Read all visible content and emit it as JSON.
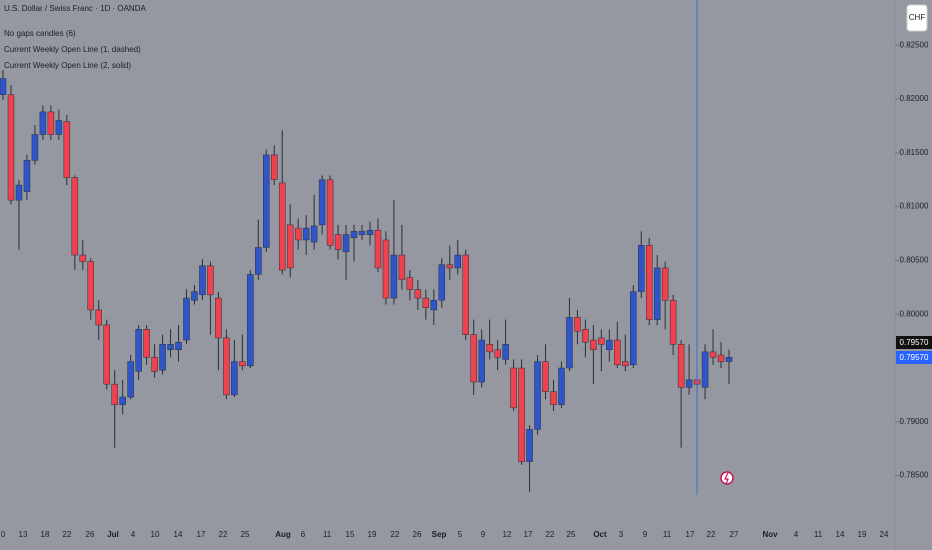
{
  "chart_data": {
    "type": "candlestick",
    "title": "U.S. Dollar / Swiss Franc · 1D · OANDA",
    "indicators": [
      "No gaps candles (6)",
      "Current Weekly Open Line (1, dashed)",
      "Current Weekly Open Line (2, solid)"
    ],
    "currency_button": "CHF",
    "up_color": "#2f55c8",
    "down_color": "#f0414f",
    "open": [
      0.8204,
      0.8204,
      0.8106,
      0.8114,
      0.8143,
      0.8167,
      0.8188,
      0.8167,
      0.8179,
      0.8127,
      0.8055,
      0.8049,
      0.8004,
      0.799,
      0.7935,
      0.7916,
      0.7923,
      0.7947,
      0.7986,
      0.796,
      0.7948,
      0.7967,
      0.7967,
      0.7976,
      0.8013,
      0.8018,
      0.8045,
      0.8015,
      0.7978,
      0.7925,
      0.7956,
      0.7952,
      0.8037,
      0.8062,
      0.8148,
      0.8122,
      0.8083,
      0.808,
      0.8069,
      0.8067,
      0.8083,
      0.8125,
      0.8074,
      0.8058,
      0.8071,
      0.8074,
      0.8074,
      0.8078,
      0.8069,
      0.8015,
      0.8055,
      0.8034,
      0.8023,
      0.8015,
      0.8004,
      0.8013,
      0.8046,
      0.8043,
      0.8055,
      0.7981,
      0.7937,
      0.7972,
      0.7967,
      0.7958,
      0.795,
      0.795,
      0.7863,
      0.7893,
      0.7956,
      0.7928,
      0.7916,
      0.795,
      0.7997,
      0.7986,
      0.7976,
      0.7978,
      0.7967,
      0.7976,
      0.7956,
      0.7953,
      0.8021,
      0.8064,
      0.7995,
      0.8043,
      0.8013,
      0.7972,
      0.7932,
      0.7939,
      0.7932,
      0.7965,
      0.7962,
      0.7956
    ],
    "high": [
      0.8227,
      0.8213,
      0.8125,
      0.8148,
      0.8176,
      0.8194,
      0.8194,
      0.819,
      0.8185,
      0.8129,
      0.8069,
      0.8052,
      0.8013,
      0.7995,
      0.7948,
      0.7939,
      0.7962,
      0.799,
      0.799,
      0.7972,
      0.7981,
      0.7986,
      0.799,
      0.8023,
      0.8027,
      0.8051,
      0.8049,
      0.8021,
      0.7986,
      0.7976,
      0.7981,
      0.8041,
      0.8088,
      0.8153,
      0.8157,
      0.8171,
      0.8102,
      0.8089,
      0.8092,
      0.8111,
      0.8129,
      0.8129,
      0.8083,
      0.8083,
      0.8083,
      0.8083,
      0.8086,
      0.8089,
      0.8077,
      0.8106,
      0.8083,
      0.8041,
      0.8032,
      0.8023,
      0.8023,
      0.8052,
      0.8064,
      0.8069,
      0.806,
      0.7995,
      0.7986,
      0.7995,
      0.7976,
      0.7995,
      0.7958,
      0.7958,
      0.7897,
      0.7962,
      0.7972,
      0.7939,
      0.7956,
      0.8015,
      0.8004,
      0.7995,
      0.799,
      0.7986,
      0.7986,
      0.7993,
      0.7981,
      0.8027,
      0.8077,
      0.8071,
      0.8055,
      0.8049,
      0.8018,
      0.7976,
      0.7972,
      0.7948,
      0.7972,
      0.7986,
      0.7974,
      0.7967
    ],
    "low": [
      0.8199,
      0.8102,
      0.806,
      0.8106,
      0.8139,
      0.8162,
      0.8162,
      0.8162,
      0.812,
      0.8041,
      0.8041,
      0.7995,
      0.7976,
      0.793,
      0.7876,
      0.7907,
      0.7921,
      0.7939,
      0.7953,
      0.7941,
      0.7944,
      0.796,
      0.7956,
      0.7972,
      0.8009,
      0.8013,
      0.7981,
      0.7948,
      0.7921,
      0.7923,
      0.7948,
      0.795,
      0.8032,
      0.8058,
      0.812,
      0.8037,
      0.8034,
      0.806,
      0.8055,
      0.806,
      0.8074,
      0.806,
      0.8051,
      0.8032,
      0.8049,
      0.8069,
      0.8064,
      0.8039,
      0.8009,
      0.8009,
      0.8023,
      0.8013,
      0.8004,
      0.7995,
      0.799,
      0.8006,
      0.8032,
      0.8037,
      0.7976,
      0.7925,
      0.7932,
      0.7958,
      0.7948,
      0.7953,
      0.791,
      0.786,
      0.7835,
      0.7888,
      0.7921,
      0.791,
      0.7913,
      0.7947,
      0.7972,
      0.796,
      0.7935,
      0.7947,
      0.7956,
      0.795,
      0.7947,
      0.795,
      0.8015,
      0.799,
      0.799,
      0.7986,
      0.7962,
      0.7876,
      0.7925,
      0.7925,
      0.7921,
      0.7953,
      0.795,
      0.7935
    ],
    "close": [
      0.8219,
      0.8106,
      0.812,
      0.8143,
      0.8167,
      0.8188,
      0.8167,
      0.818,
      0.8127,
      0.8055,
      0.8049,
      0.8004,
      0.799,
      0.7935,
      0.7916,
      0.7923,
      0.7956,
      0.7986,
      0.796,
      0.7947,
      0.7972,
      0.7972,
      0.7974,
      0.8015,
      0.8021,
      0.8045,
      0.8018,
      0.7978,
      0.7925,
      0.7956,
      0.7952,
      0.8037,
      0.8062,
      0.8148,
      0.8125,
      0.8041,
      0.8043,
      0.8069,
      0.808,
      0.8082,
      0.8125,
      0.8064,
      0.806,
      0.8074,
      0.8077,
      0.8077,
      0.8078,
      0.8043,
      0.8015,
      0.8055,
      0.8032,
      0.8023,
      0.8015,
      0.8006,
      0.8013,
      0.8046,
      0.8043,
      0.8055,
      0.7981,
      0.7937,
      0.7976,
      0.7965,
      0.796,
      0.7972,
      0.7913,
      0.7863,
      0.7893,
      0.7956,
      0.7928,
      0.7916,
      0.795,
      0.7997,
      0.7984,
      0.7974,
      0.7967,
      0.7972,
      0.7976,
      0.7953,
      0.7952,
      0.8021,
      0.8064,
      0.7995,
      0.8043,
      0.8013,
      0.7972,
      0.7932,
      0.7939,
      0.7935,
      0.7965,
      0.796,
      0.7956,
      0.796
    ],
    "ylim": [
      0.7832,
      0.8292
    ],
    "yticks": [
      {
        "value": 0.825,
        "label": "0.82500"
      },
      {
        "value": 0.82,
        "label": "0.82000"
      },
      {
        "value": 0.815,
        "label": "0.81500"
      },
      {
        "value": 0.81,
        "label": "0.81000"
      },
      {
        "value": 0.805,
        "label": "0.80500"
      },
      {
        "value": 0.8,
        "label": "0.80000"
      },
      {
        "value": 0.79,
        "label": "0.79000"
      },
      {
        "value": 0.785,
        "label": "0.78500"
      }
    ],
    "price_labels": [
      "0.79570",
      "0.79570"
    ],
    "xtick_labels": [
      "0",
      "13",
      "18",
      "22",
      "26",
      "Jul",
      "4",
      "10",
      "14",
      "17",
      "22",
      "25",
      "Aug",
      "6",
      "11",
      "15",
      "19",
      "22",
      "26",
      "Sep",
      "5",
      "9",
      "12",
      "17",
      "22",
      "25",
      "Oct",
      "3",
      "9",
      "11",
      "17",
      "22",
      "27",
      "Nov",
      "4",
      "11",
      "14",
      "19",
      "24"
    ]
  }
}
